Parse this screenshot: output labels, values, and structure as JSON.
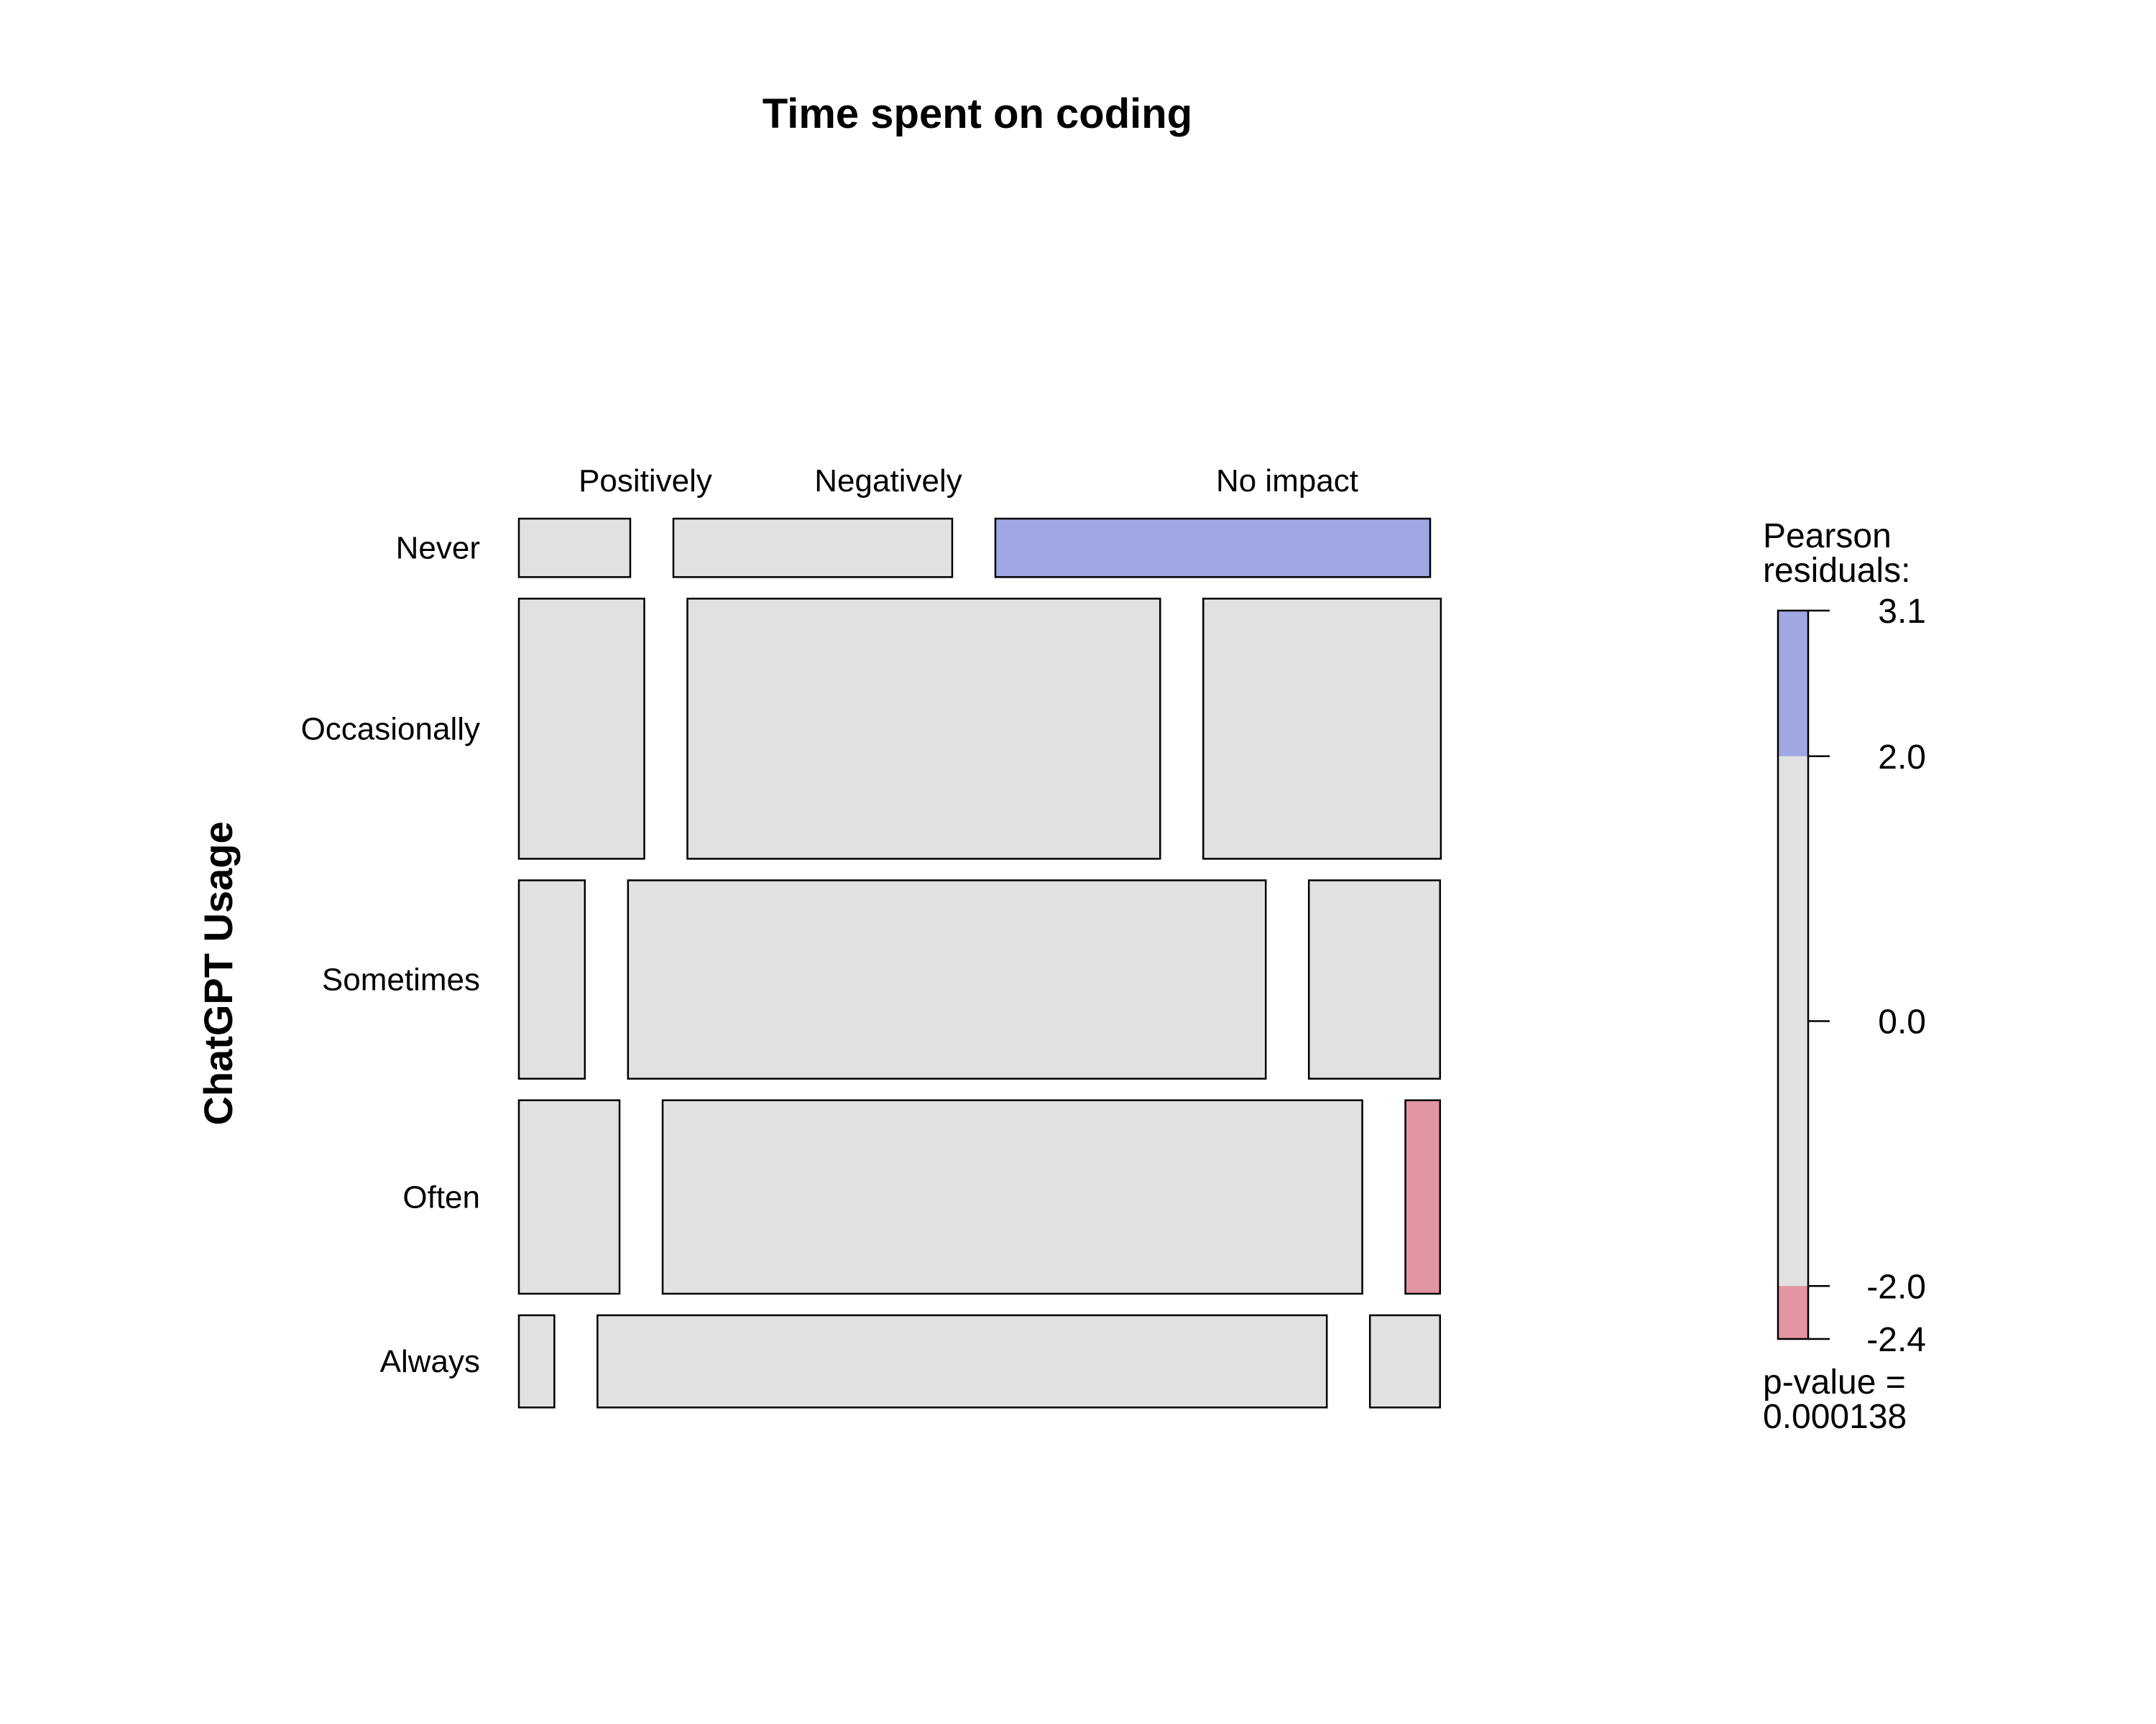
{
  "chart_data": {
    "type": "mosaic",
    "title": "Time spent on coding",
    "ylabel": "ChatGPT Usage",
    "column_levels": [
      "Positively",
      "Negatively",
      "No impact"
    ],
    "row_levels": [
      "Never",
      "Occasionally",
      "Sometimes",
      "Often",
      "Always"
    ],
    "row_proportions": [
      0.071,
      0.316,
      0.241,
      0.235,
      0.112
    ],
    "cells": [
      {
        "row": "Never",
        "proportions": [
          0.135,
          0.338,
          0.527
        ],
        "residual_band": [
          "none",
          "none",
          "positive_high"
        ]
      },
      {
        "row": "Occasionally",
        "proportions": [
          0.152,
          0.573,
          0.288
        ],
        "residual_band": [
          "none",
          "none",
          "none"
        ]
      },
      {
        "row": "Sometimes",
        "proportions": [
          0.08,
          0.773,
          0.159
        ],
        "residual_band": [
          "none",
          "none",
          "none"
        ]
      },
      {
        "row": "Often",
        "proportions": [
          0.122,
          0.848,
          0.042
        ],
        "residual_band": [
          "none",
          "none",
          "negative_high"
        ]
      },
      {
        "row": "Always",
        "proportions": [
          0.043,
          0.884,
          0.085
        ],
        "residual_band": [
          "none",
          "none",
          "none"
        ]
      }
    ],
    "legend": {
      "title_line1": "Pearson",
      "title_line2": "residuals:",
      "range": [
        -2.4,
        3.1
      ],
      "ticks": [
        "3.1",
        "2.0",
        "0.0",
        "-2.0",
        "-2.4"
      ],
      "tick_values": [
        3.1,
        2.0,
        0.0,
        -2.0,
        -2.4
      ],
      "pvalue_line1": "p-value =",
      "pvalue_line2": "0.000138"
    },
    "colors": {
      "neutral": "#e1e1e1",
      "positive_high": "#9fa8e2",
      "negative_high": "#e196a2",
      "border": "#000000"
    }
  }
}
